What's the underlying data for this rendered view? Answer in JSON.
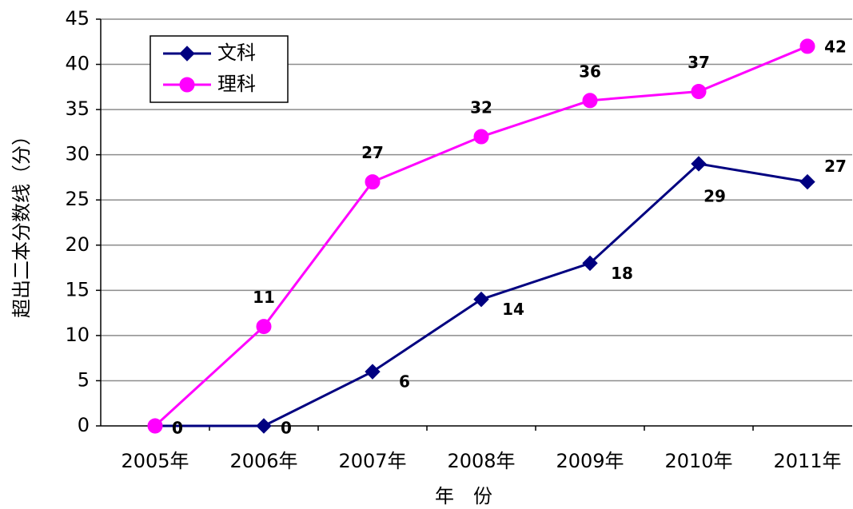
{
  "chart_data": {
    "type": "line",
    "x_label": "年　份",
    "y_label": "超出二本分数线（分）",
    "categories": [
      "2005年",
      "2006年",
      "2007年",
      "2008年",
      "2009年",
      "2010年",
      "2011年"
    ],
    "series": [
      {
        "name": "文科",
        "color": "#000080",
        "marker": "diamond",
        "values": [
          0,
          0,
          6,
          14,
          18,
          29,
          27
        ]
      },
      {
        "name": "理科",
        "color": "#ff00ff",
        "marker": "circle",
        "values": [
          0,
          11,
          27,
          32,
          36,
          37,
          42
        ]
      }
    ],
    "ylim": [
      0,
      45
    ],
    "yticks": [
      0,
      5,
      10,
      15,
      20,
      25,
      30,
      35,
      40,
      45
    ],
    "grid": true,
    "legend": "top-left"
  }
}
